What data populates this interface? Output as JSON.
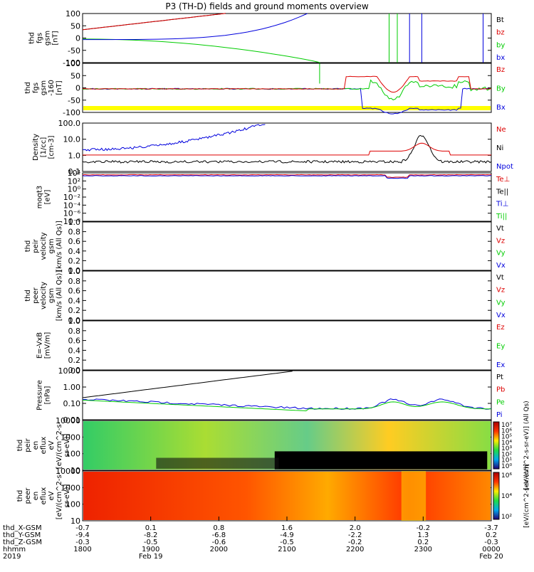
{
  "title": "P3 (TH-D) fields and ground moments overview",
  "colors": {
    "black": "#000000",
    "red": "#dd0000",
    "green": "#00cc00",
    "blue": "#0000dd",
    "yellow": "#ffff00"
  },
  "chart_data": [
    {
      "type": "line",
      "ylabel_lines": [
        "thd",
        "fgs",
        "gsm",
        "[nT]"
      ],
      "yticks": [
        "100",
        "50",
        "0",
        "-50",
        "-100"
      ],
      "ylim": [
        -100,
        100
      ],
      "legend": [
        {
          "name": "Bt",
          "color": "black"
        },
        {
          "name": "bz",
          "color": "red"
        },
        {
          "name": "by",
          "color": "green"
        },
        {
          "name": "bx",
          "color": "blue"
        }
      ]
    },
    {
      "type": "line",
      "ylabel_lines": [
        "thd",
        "fgs",
        "gsm",
        "-160",
        "[nT]"
      ],
      "yticks": [
        "100",
        "50",
        "0",
        "-50",
        "-100"
      ],
      "ylim": [
        -120,
        100
      ],
      "legend": [
        {
          "name": "Bz",
          "color": "red"
        },
        {
          "name": "By",
          "color": "green"
        },
        {
          "name": "Bx",
          "color": "blue"
        }
      ]
    },
    {
      "type": "line",
      "ylabel_lines": [
        "Density",
        "[1/cc]",
        "[cm-3]"
      ],
      "yticks": [
        "100.0",
        "10.0",
        "1.0",
        "0.1"
      ],
      "scale": "log",
      "legend": [
        {
          "name": "Ne",
          "color": "red"
        },
        {
          "name": "Ni",
          "color": "black"
        },
        {
          "name": "Npot",
          "color": "blue"
        }
      ]
    },
    {
      "type": "line",
      "ylabel_lines": [
        "moqt3",
        "[eV]"
      ],
      "yticks": [
        "10⁴",
        "10²",
        "10⁰",
        "10⁻²",
        "10⁻⁴",
        "10⁻⁶",
        "10⁻⁸"
      ],
      "scale": "log",
      "legend": [
        {
          "name": "Te⊥",
          "color": "red"
        },
        {
          "name": "Te||",
          "color": "black"
        },
        {
          "name": "Ti⊥",
          "color": "blue"
        },
        {
          "name": "Ti||",
          "color": "green"
        }
      ]
    },
    {
      "type": "line",
      "ylabel_lines": [
        "thd",
        "peir",
        "velocity",
        "gsm",
        "[km/s (All Qs)]"
      ],
      "yticks": [
        "1.0",
        "0.8",
        "0.6",
        "0.4",
        "0.2",
        "0.0"
      ],
      "ylim": [
        0,
        1
      ],
      "legend": [
        {
          "name": "Vt",
          "color": "black"
        },
        {
          "name": "Vz",
          "color": "red"
        },
        {
          "name": "Vy",
          "color": "green"
        },
        {
          "name": "Vx",
          "color": "blue"
        }
      ]
    },
    {
      "type": "line",
      "ylabel_lines": [
        "thd",
        "peer",
        "velocity",
        "gsm",
        "[km/s (All Qs)]"
      ],
      "yticks": [
        "1.0",
        "0.8",
        "0.6",
        "0.4",
        "0.2",
        "0.0"
      ],
      "ylim": [
        0,
        1
      ],
      "legend": [
        {
          "name": "Vt",
          "color": "black"
        },
        {
          "name": "Vz",
          "color": "red"
        },
        {
          "name": "Vy",
          "color": "green"
        },
        {
          "name": "Vx",
          "color": "blue"
        }
      ]
    },
    {
      "type": "line",
      "ylabel_lines": [
        "E=-VxB",
        "[mV/m]"
      ],
      "yticks": [
        "1.0",
        "0.8",
        "0.6",
        "0.4",
        "0.2",
        "0.0"
      ],
      "ylim": [
        0,
        1
      ],
      "legend": [
        {
          "name": "Ez",
          "color": "red"
        },
        {
          "name": "Ey",
          "color": "green"
        },
        {
          "name": "Ex",
          "color": "blue"
        }
      ]
    },
    {
      "type": "line",
      "ylabel_lines": [
        "Pressure",
        "[nPa]"
      ],
      "yticks": [
        "10.00",
        "1.00",
        "0.10",
        "0.01"
      ],
      "scale": "log",
      "legend": [
        {
          "name": "Pt",
          "color": "black"
        },
        {
          "name": "Pb",
          "color": "red"
        },
        {
          "name": "Pe",
          "color": "green"
        },
        {
          "name": "Pi",
          "color": "blue"
        }
      ]
    },
    {
      "type": "heatmap",
      "ylabel_lines": [
        "thd",
        "peir",
        "en",
        "eflux",
        "eV",
        "[eV/(cm^2-s-",
        "sr-eV)]"
      ],
      "yticks": [
        "10000",
        "1000",
        "100",
        "10"
      ],
      "colorbar_ticks": [
        "10⁷",
        "10⁶",
        "10⁵",
        "10⁴",
        "10³",
        "10²",
        "10¹",
        "10⁰"
      ],
      "colorbar_label": "[eV/(cm^2-s-sr-eV)] (All Qs)"
    },
    {
      "type": "heatmap",
      "ylabel_lines": [
        "thd",
        "peer",
        "en",
        "eflux",
        "eV",
        "[eV/(cm^2-s-",
        "sr-eV)]"
      ],
      "yticks": [
        "10000",
        "1000",
        "100",
        "10"
      ],
      "colorbar_ticks": [
        "10⁶",
        "10⁴",
        "10²"
      ],
      "colorbar_label": "[eV/(cm^2-s-sr-eV)]"
    }
  ],
  "xaxis": {
    "rows": [
      {
        "label": "thd_X-GSM",
        "values": [
          "-0.7",
          "0.1",
          "0.8",
          "1.6",
          "2.0",
          "-0.2",
          "-3.7"
        ]
      },
      {
        "label": "thd_Y-GSM",
        "values": [
          "-9.4",
          "-8.2",
          "-6.8",
          "-4.9",
          "-2.2",
          "1.3",
          "0.2"
        ]
      },
      {
        "label": "thd_Z-GSM",
        "values": [
          "-0.3",
          "-0.5",
          "-0.6",
          "-0.5",
          "-0.2",
          "0.2",
          "-0.3"
        ]
      },
      {
        "label": "hhmm",
        "values": [
          "1800",
          "1900",
          "2000",
          "2100",
          "2200",
          "2300",
          "0000"
        ]
      }
    ],
    "year": "2019",
    "date_start": "Feb 19",
    "date_end": "Feb 20"
  }
}
